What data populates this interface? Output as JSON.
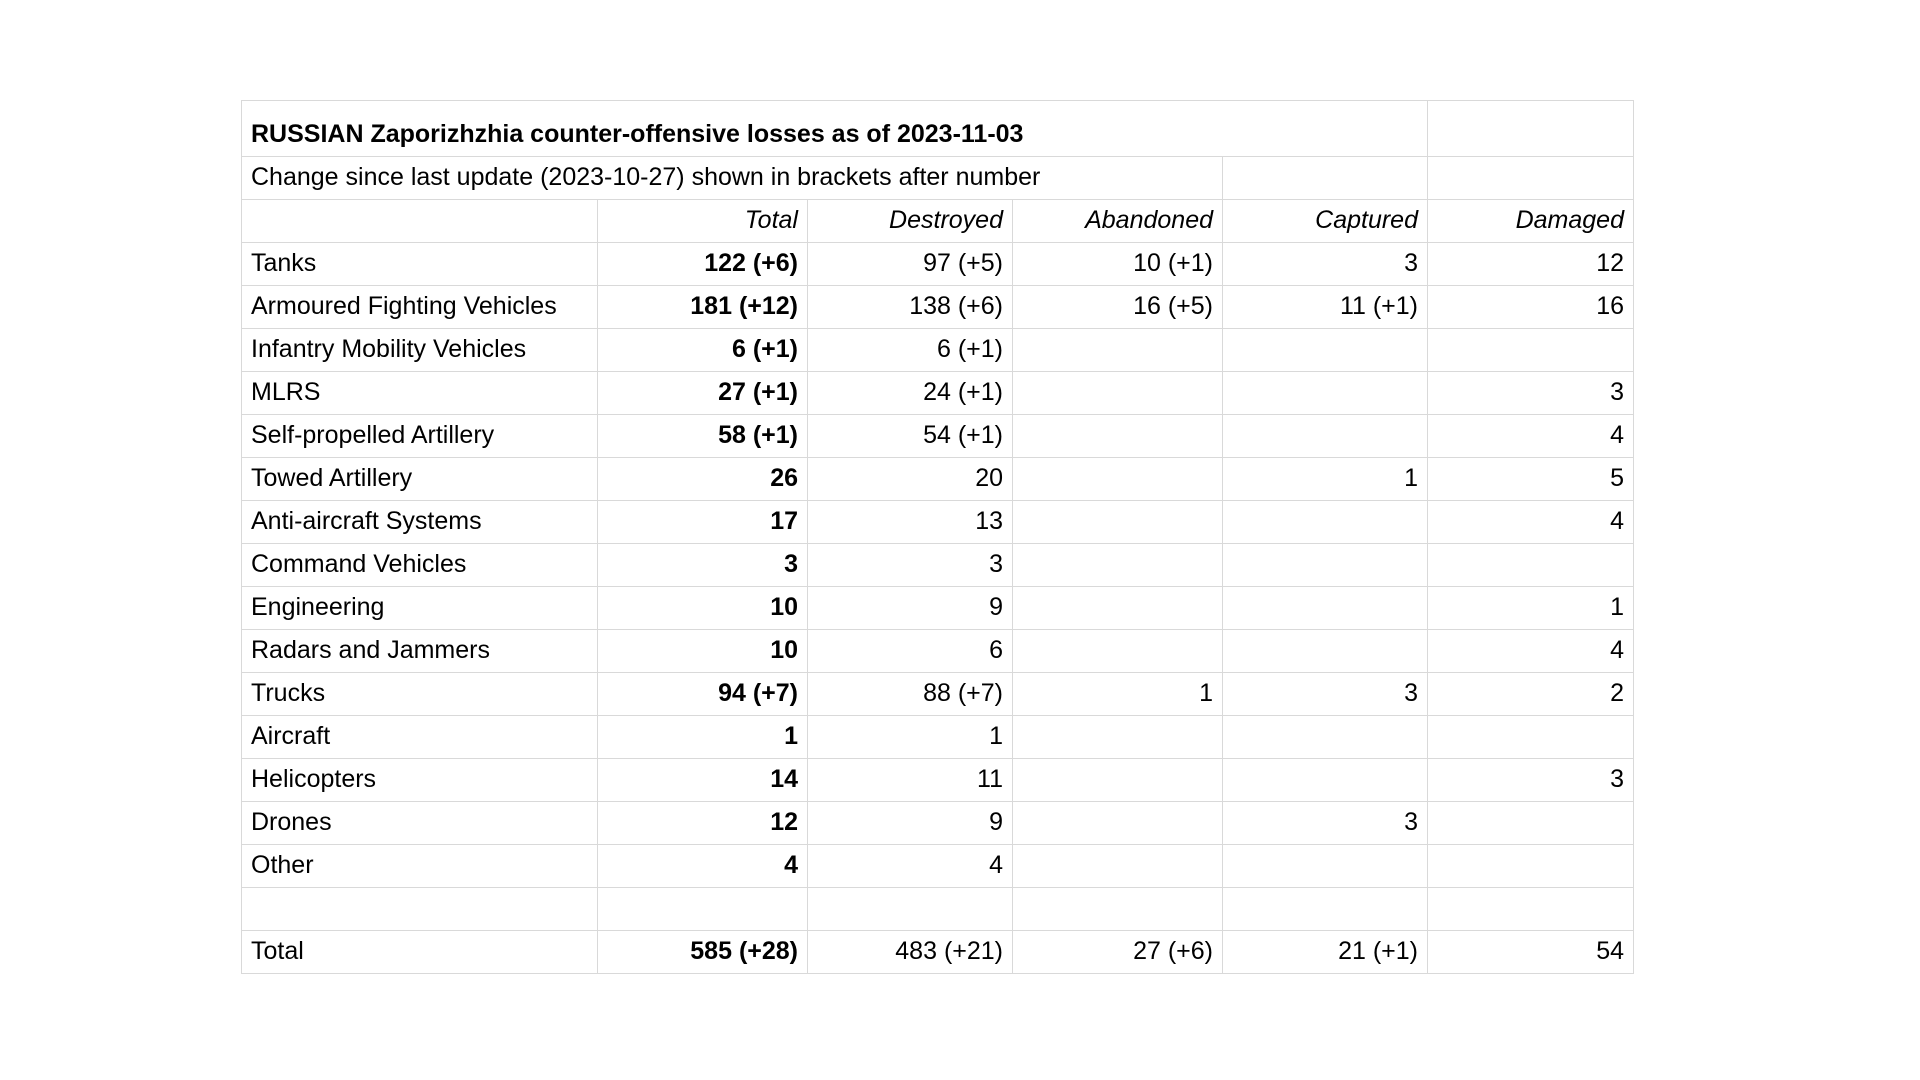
{
  "page": {
    "background_color": "#ffffff",
    "text_color": "#000000",
    "gridline_color": "#d9d9d9"
  },
  "table": {
    "title": "RUSSIAN Zaporizhzhia counter-offensive losses as of 2023-11-03",
    "subtitle": "Change since last update (2023-10-27) shown in brackets after number",
    "columns": [
      "",
      "Total",
      "Destroyed",
      "Abandoned",
      "Captured",
      "Damaged"
    ],
    "rows": [
      {
        "label": "Tanks",
        "total": "122 (+6)",
        "destroyed": "97 (+5)",
        "abandoned": "10 (+1)",
        "captured": "3",
        "damaged": "12"
      },
      {
        "label": "Armoured Fighting Vehicles",
        "total": "181 (+12)",
        "destroyed": "138 (+6)",
        "abandoned": "16 (+5)",
        "captured": "11 (+1)",
        "damaged": "16"
      },
      {
        "label": "Infantry Mobility Vehicles",
        "total": "6 (+1)",
        "destroyed": "6 (+1)",
        "abandoned": "",
        "captured": "",
        "damaged": ""
      },
      {
        "label": "MLRS",
        "total": "27 (+1)",
        "destroyed": "24 (+1)",
        "abandoned": "",
        "captured": "",
        "damaged": "3"
      },
      {
        "label": "Self-propelled Artillery",
        "total": "58 (+1)",
        "destroyed": "54 (+1)",
        "abandoned": "",
        "captured": "",
        "damaged": "4"
      },
      {
        "label": "Towed Artillery",
        "total": "26",
        "destroyed": "20",
        "abandoned": "",
        "captured": "1",
        "damaged": "5"
      },
      {
        "label": "Anti-aircraft Systems",
        "total": "17",
        "destroyed": "13",
        "abandoned": "",
        "captured": "",
        "damaged": "4"
      },
      {
        "label": "Command Vehicles",
        "total": "3",
        "destroyed": "3",
        "abandoned": "",
        "captured": "",
        "damaged": ""
      },
      {
        "label": "Engineering",
        "total": "10",
        "destroyed": "9",
        "abandoned": "",
        "captured": "",
        "damaged": "1"
      },
      {
        "label": "Radars and Jammers",
        "total": "10",
        "destroyed": "6",
        "abandoned": "",
        "captured": "",
        "damaged": "4"
      },
      {
        "label": "Trucks",
        "total": "94 (+7)",
        "destroyed": "88 (+7)",
        "abandoned": "1",
        "captured": "3",
        "damaged": "2"
      },
      {
        "label": "Aircraft",
        "total": "1",
        "destroyed": "1",
        "abandoned": "",
        "captured": "",
        "damaged": ""
      },
      {
        "label": "Helicopters",
        "total": "14",
        "destroyed": "11",
        "abandoned": "",
        "captured": "",
        "damaged": "3"
      },
      {
        "label": "Drones",
        "total": "12",
        "destroyed": "9",
        "abandoned": "",
        "captured": "3",
        "damaged": ""
      },
      {
        "label": "Other",
        "total": "4",
        "destroyed": "4",
        "abandoned": "",
        "captured": "",
        "damaged": ""
      }
    ],
    "total_row": {
      "label": "Total",
      "total": "585 (+28)",
      "destroyed": "483 (+21)",
      "abandoned": "27 (+6)",
      "captured": "21 (+1)",
      "damaged": "54"
    }
  }
}
